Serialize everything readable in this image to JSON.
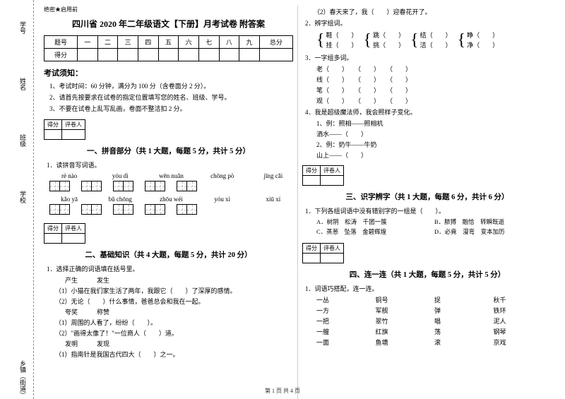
{
  "binding": {
    "labels": [
      "学号",
      "姓名",
      "班级",
      "学校",
      "乡镇（街道）"
    ],
    "inner": [
      "内",
      "线",
      "封",
      "密"
    ]
  },
  "secret": "绝密★启用前",
  "title": "四川省 2020 年二年级语文【下册】月考试卷 附答案",
  "score_table": {
    "headers": [
      "题号",
      "一",
      "二",
      "三",
      "四",
      "五",
      "六",
      "七",
      "八",
      "九",
      "总分"
    ],
    "row2": "得分"
  },
  "notice": {
    "heading": "考试须知：",
    "items": [
      "1、考试时间：60 分钟，满分为 100 分（含卷面分 2 分）。",
      "2、请首先按要求在试卷的指定位置填写您的姓名、班级、学号。",
      "3、不要在试卷上乱写乱画，卷面不整洁扣 2 分。"
    ]
  },
  "scorebox": {
    "c1": "得分",
    "c2": "评卷人"
  },
  "sections": {
    "s1": "一、拼音部分（共 1 大题，每题 5 分，共计 5 分）",
    "s2": "二、基础知识（共 4 大题，每题 5 分，共计 20 分）",
    "s3": "三、识字辨字（共 1 大题，每题 6 分，共计 6 分）",
    "s4": "四、连一连（共 1 大题，每题 5 分，共计 5 分）"
  },
  "q1": {
    "stem": "1．读拼音写词语。",
    "pinyin": [
      [
        "rè   nào",
        "yóu   dì",
        "wēn   nuǎn",
        "chōng  pò",
        "jīng   cǎi"
      ],
      [
        "kǎo   yā",
        "bǔ   chōng",
        "zhōu  wéi",
        "yóu   xì",
        "xiū    xí"
      ]
    ]
  },
  "q_basic": {
    "q1": {
      "stem": "1．选择正确的词语填在括号里。",
      "pair1a": "产生",
      "pair1b": "发生",
      "l1": "（1）小猫在我们家生活了两年，我跟它（　　）了深厚的感情。",
      "l2": "（2）无论（　　）什么事情，爸爸总会和我在一起。",
      "pair2a": "夸奖",
      "pair2b": "称赞",
      "l3": "（1）周围的人看了，纷纷（　　）。",
      "l4": "（2）\"画得太像了！\"一位商人（　　）道。",
      "pair3a": "发明",
      "pair3b": "发现",
      "l5": "（1）指南针是我国古代四大（　　）之一。"
    },
    "q2l": "（2）春天来了，我（　　）迎春花开了。",
    "q2": {
      "stem": "2．辨字组词。",
      "groups": [
        [
          "鞋（　　）",
          "挂（　　）"
        ],
        [
          "跳（　　）",
          "挑（　　）"
        ],
        [
          "结（　　）",
          "洁（　　）"
        ],
        [
          "睁（　　）",
          "净（　　）"
        ]
      ]
    },
    "q3": {
      "stem": "3．一字组多词。",
      "rows": [
        "老（　　）　　（　　）　　（　　）",
        "线（　　）　　（　　）　　（　　）",
        "笔（　　）　　（　　）　　（　　）",
        "观（　　）　　（　　）　　（　　）"
      ]
    },
    "q4": {
      "stem": "4．我是超级魔法师，我会照样子变化。",
      "ex": "1、例：照相——照相机",
      "rows": [
        "洒水——（　　）",
        "2、例：奶牛——牛奶",
        "山上——（　　）"
      ]
    }
  },
  "q_ident": {
    "stem": "1．下列各组词语中没有错别字的一组是（　　）。",
    "opts": [
      "A．树阴　松涛　千团一簇",
      "B．脓搏　融恰　转瞬既逝",
      "C．蒸葱　坠落　金碧辉煌",
      "D．必竟　漫弯　变本加历"
    ]
  },
  "q_match": {
    "stem": "1．词语巧搭配，连一连。",
    "rows": [
      [
        "一丛",
        "铜号",
        "捉",
        "秋千"
      ],
      [
        "一方",
        "军舰",
        "弹",
        "铁环"
      ],
      [
        "一把",
        "翠竹",
        "唱",
        "泥人"
      ],
      [
        "一艘",
        "红旗",
        "荡",
        "钢琴"
      ],
      [
        "一面",
        "鱼塘",
        "滚",
        "京戏"
      ]
    ]
  },
  "footer": "第 1 页 共 4 页"
}
